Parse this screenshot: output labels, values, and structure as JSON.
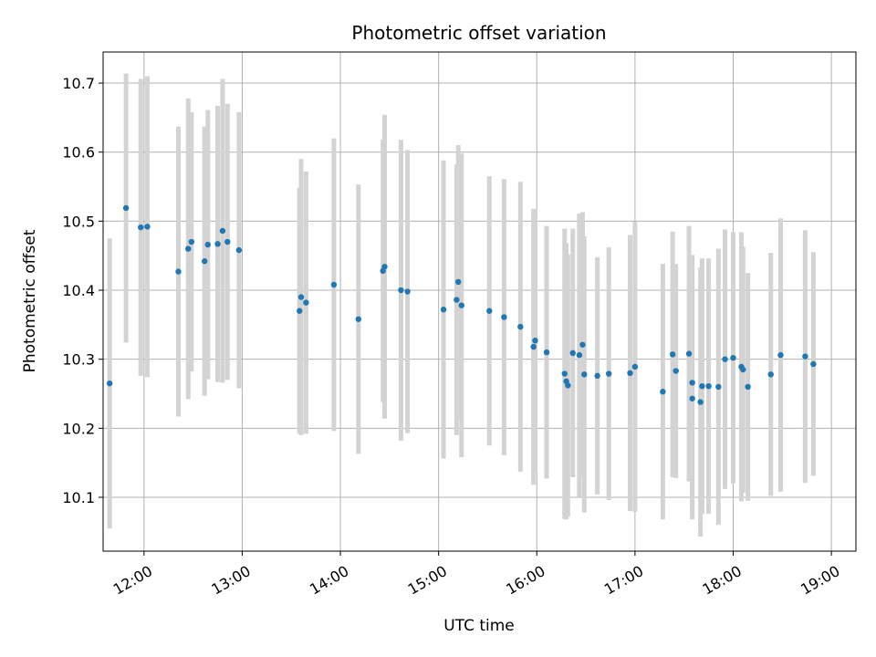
{
  "chart_data": {
    "type": "scatter",
    "title": "Photometric offset variation",
    "xlabel": "UTC time",
    "ylabel": "Photometric offset",
    "xlim": [
      "11:35",
      "19:15"
    ],
    "ylim": [
      10.022,
      10.745
    ],
    "xticks": [
      "12:00",
      "13:00",
      "14:00",
      "15:00",
      "16:00",
      "17:00",
      "18:00",
      "19:00"
    ],
    "yticks": [
      10.1,
      10.2,
      10.3,
      10.4,
      10.5,
      10.6,
      10.7
    ],
    "grid": true,
    "colors": {
      "point": "#1f77b4",
      "errorbar": "#d3d3d3",
      "grid": "#b0b0b0"
    },
    "series": [
      {
        "x": [
          "11:39",
          "11:49",
          "11:58",
          "12:02",
          "12:21",
          "12:27",
          "12:29",
          "12:37",
          "12:39",
          "12:45",
          "12:48",
          "12:51",
          "12:58",
          "13:35",
          "13:36",
          "13:39",
          "13:56",
          "14:11",
          "14:26",
          "14:27",
          "14:37",
          "14:41",
          "15:03",
          "15:11",
          "15:12",
          "15:14",
          "15:31",
          "15:40",
          "15:50",
          "15:58",
          "15:59",
          "16:06",
          "16:17",
          "16:18",
          "16:19",
          "16:22",
          "16:26",
          "16:28",
          "16:29",
          "16:37",
          "16:44",
          "16:57",
          "17:00",
          "17:17",
          "17:23",
          "17:25",
          "17:33",
          "17:35",
          "17:35",
          "17:40",
          "17:41",
          "17:45",
          "17:51",
          "17:55",
          "18:00",
          "18:05",
          "18:06",
          "18:09",
          "18:23",
          "18:29",
          "18:44",
          "18:49"
        ],
        "y": [
          10.265,
          10.519,
          10.491,
          10.492,
          10.427,
          10.46,
          10.47,
          10.442,
          10.466,
          10.467,
          10.486,
          10.47,
          10.458,
          10.37,
          10.39,
          10.382,
          10.408,
          10.358,
          10.428,
          10.434,
          10.4,
          10.398,
          10.372,
          10.386,
          10.412,
          10.378,
          10.37,
          10.361,
          10.347,
          10.318,
          10.327,
          10.31,
          10.279,
          10.268,
          10.262,
          10.309,
          10.306,
          10.321,
          10.278,
          10.276,
          10.279,
          10.28,
          10.289,
          10.253,
          10.307,
          10.283,
          10.308,
          10.243,
          10.266,
          10.238,
          10.261,
          10.261,
          10.26,
          10.3,
          10.302,
          10.289,
          10.285,
          10.26,
          10.278,
          10.306,
          10.304,
          10.293
        ],
        "yerr": [
          0.21,
          0.195,
          0.215,
          0.218,
          0.21,
          0.218,
          0.188,
          0.195,
          0.195,
          0.2,
          0.22,
          0.2,
          0.2,
          0.178,
          0.2,
          0.19,
          0.212,
          0.195,
          0.19,
          0.22,
          0.218,
          0.205,
          0.216,
          0.196,
          0.198,
          0.22,
          0.195,
          0.2,
          0.21,
          0.2,
          0.19,
          0.183,
          0.21,
          0.2,
          0.19,
          0.18,
          0.205,
          0.192,
          0.2,
          0.172,
          0.183,
          0.2,
          0.21,
          0.185,
          0.178,
          0.155,
          0.185,
          0.175,
          0.185,
          0.195,
          0.185,
          0.185,
          0.2,
          0.188,
          0.182,
          0.195,
          0.178,
          0.165,
          0.176,
          0.198,
          0.183,
          0.162
        ]
      }
    ]
  }
}
